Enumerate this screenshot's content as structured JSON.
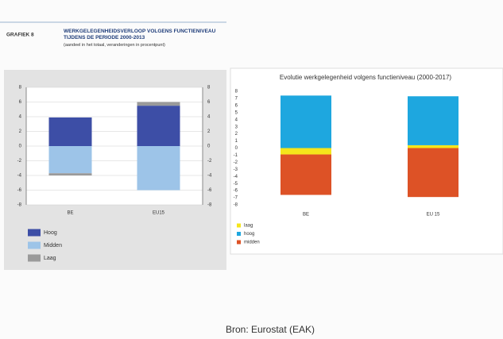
{
  "source": "Bron: Eurostat (EAK)",
  "chart_data": [
    {
      "type": "stacked-bar",
      "label": "GRAFIEK 8",
      "title": "WERKGELEGENHEIDSVERLOOP VOLGENS FUNCTIENIVEAU TIJDENS DE PERIODE 2000-2013",
      "subtitle": "(aandeel in het totaal, veranderingen in procentpunt)",
      "categories": [
        "BE",
        "EU15"
      ],
      "series": [
        {
          "name": "Hoog",
          "color": "#3d4ea6",
          "values": [
            3.9,
            5.5
          ]
        },
        {
          "name": "Midden",
          "color": "#9dc4e8",
          "values": [
            -3.7,
            -6
          ]
        },
        {
          "name": "Laag",
          "color": "#9a9a9a",
          "values": [
            -0.3,
            0.5
          ]
        }
      ],
      "ylim": [
        -8,
        8
      ],
      "yticks": [
        -8,
        -6,
        -4,
        -2,
        0,
        2,
        4,
        6,
        8
      ],
      "grid": true
    },
    {
      "type": "stacked-bar",
      "title": "Evolutie werkgelegenheid volgens functieniveau (2000-2017)",
      "categories": [
        "BE",
        "EU 15"
      ],
      "series": [
        {
          "name": "laag",
          "color": "#f5e51b",
          "values": [
            -0.9,
            0.4
          ]
        },
        {
          "name": "hoog",
          "color": "#1ea7df",
          "values": [
            7.4,
            6.9
          ]
        },
        {
          "name": "midden",
          "color": "#dd5226",
          "values": [
            -5.7,
            -6.9
          ]
        }
      ],
      "ylim": [
        -8,
        8
      ],
      "yticks": [
        -8,
        -7,
        -6,
        -5,
        -4,
        -3,
        -2,
        -1,
        0,
        1,
        2,
        3,
        4,
        5,
        6,
        7,
        8
      ],
      "grid": false
    }
  ]
}
